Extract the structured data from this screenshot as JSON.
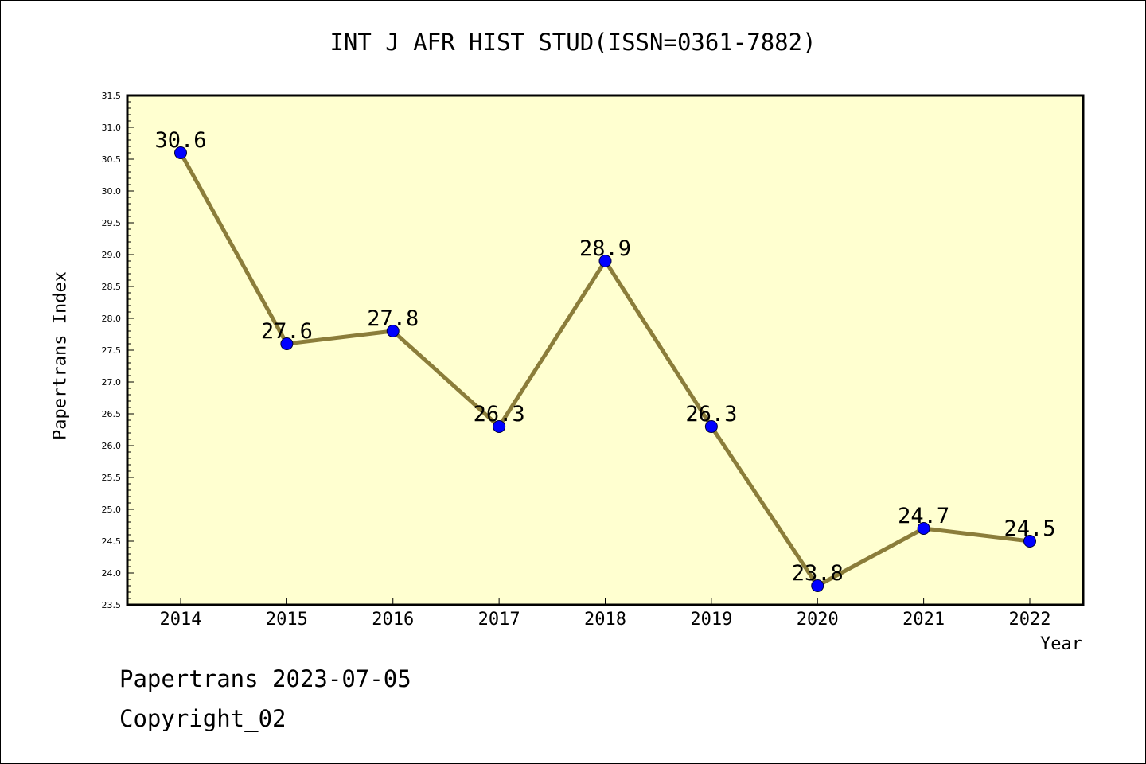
{
  "title": "INT J AFR HIST STUD(ISSN=0361-7882)",
  "footer": {
    "line1": "Papertrans 2023-07-05",
    "line2": "Copyright_02"
  },
  "colors": {
    "plot_background": "#ffffd0",
    "line": "#8b7d3a",
    "marker": "#0000ff",
    "axis": "#000000"
  },
  "chart_data": {
    "type": "line",
    "title": "INT J AFR HIST STUD(ISSN=0361-7882)",
    "xlabel": "Year",
    "ylabel": "Papertrans Index",
    "categories": [
      "2014",
      "2015",
      "2016",
      "2017",
      "2018",
      "2019",
      "2020",
      "2021",
      "2022"
    ],
    "series": [
      {
        "values": [
          30.6,
          27.6,
          27.8,
          26.3,
          28.9,
          26.3,
          23.8,
          24.7,
          24.5
        ],
        "data_labels": [
          "30.6",
          "27.6",
          "27.8",
          "26.3",
          "28.9",
          "26.3",
          "23.8",
          "24.7",
          "24.5"
        ]
      }
    ],
    "ylim": [
      23.5,
      31.5
    ],
    "yticks": [
      "23.5",
      "24.0",
      "24.5",
      "25.0",
      "25.5",
      "26.0",
      "26.5",
      "27.0",
      "27.5",
      "28.0",
      "28.5",
      "29.0",
      "29.5",
      "30.0",
      "30.5",
      "31.0",
      "31.5"
    ],
    "grid": false,
    "legend": "none",
    "markers": "circle"
  }
}
